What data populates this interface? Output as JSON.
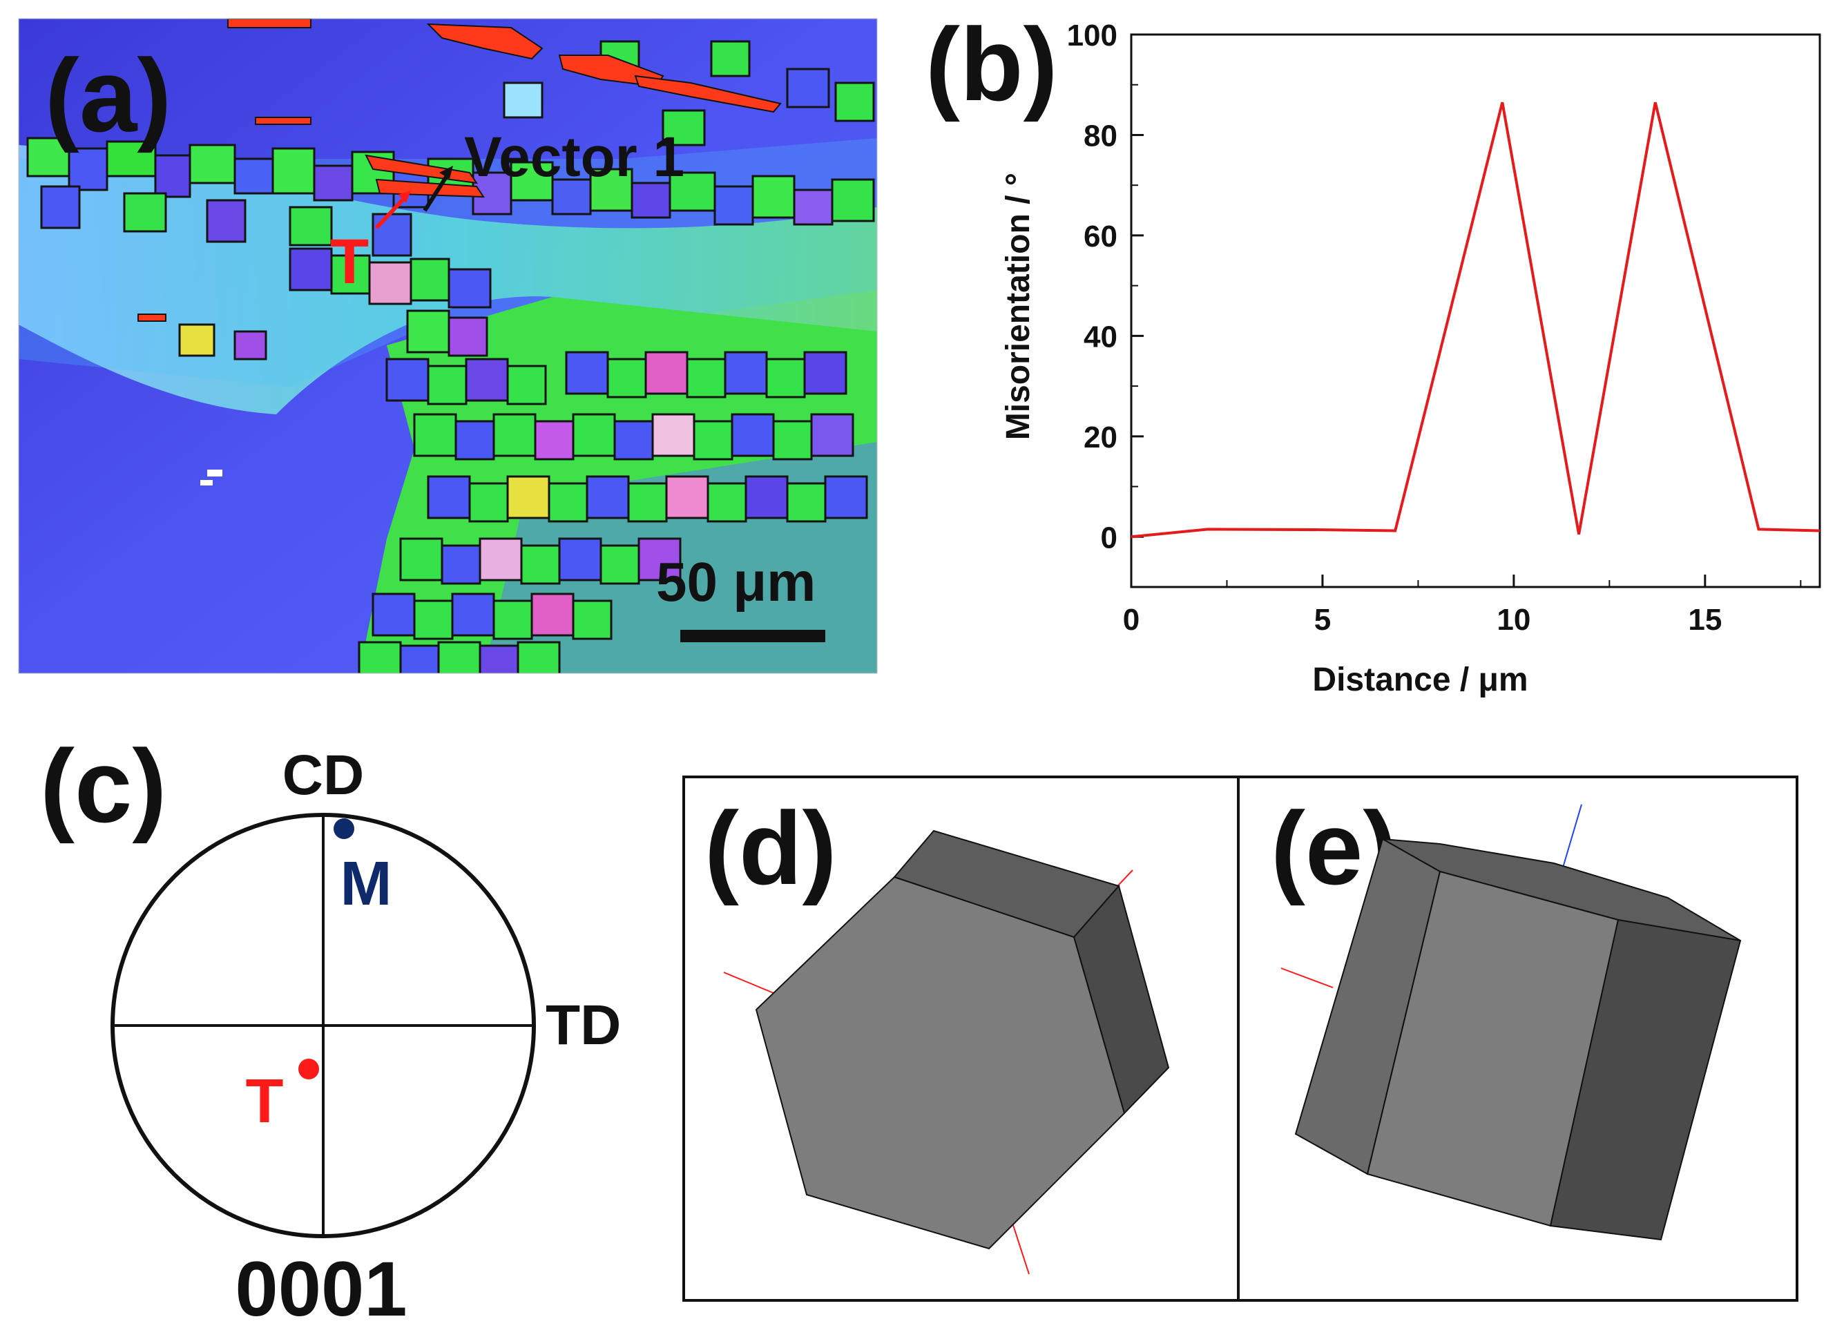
{
  "panels": {
    "a": {
      "label": "(a)",
      "vector_label": "Vector 1",
      "twin_marker": "T",
      "scale_bar_label": "50 μm",
      "colors": {
        "matrix_blue": "#4a4af0",
        "grain_green": "#33e13a",
        "twin_red": "#ff3a1a",
        "boundary": "#111111"
      }
    },
    "b": {
      "label": "(b)",
      "line_color": "#e31b1b"
    },
    "c": {
      "label": "(c)",
      "top_axis": "CD",
      "right_axis": "TD",
      "pole_label": "0001",
      "points": [
        {
          "name": "M",
          "color": "#0f2a6b"
        },
        {
          "name": "T",
          "color": "#ff1a1a"
        }
      ]
    },
    "d": {
      "label": "(d)"
    },
    "e": {
      "label": "(e)"
    }
  },
  "chart_data": {
    "type": "line",
    "title": "",
    "xlabel": "Distance / μm",
    "ylabel": "Misorientation / °",
    "xlim": [
      0,
      18
    ],
    "ylim": [
      -10,
      100
    ],
    "xticks": [
      0,
      5,
      10,
      15
    ],
    "yticks": [
      0,
      20,
      40,
      60,
      80,
      100
    ],
    "grid": false,
    "series": [
      {
        "name": "Vector 1",
        "x": [
          0,
          2,
          5,
          6.9,
          9.7,
          11.7,
          13.7,
          16.4,
          18
        ],
        "y": [
          0,
          1.5,
          1.4,
          1.2,
          86.5,
          0.5,
          86.5,
          1.5,
          1.2
        ]
      }
    ]
  }
}
